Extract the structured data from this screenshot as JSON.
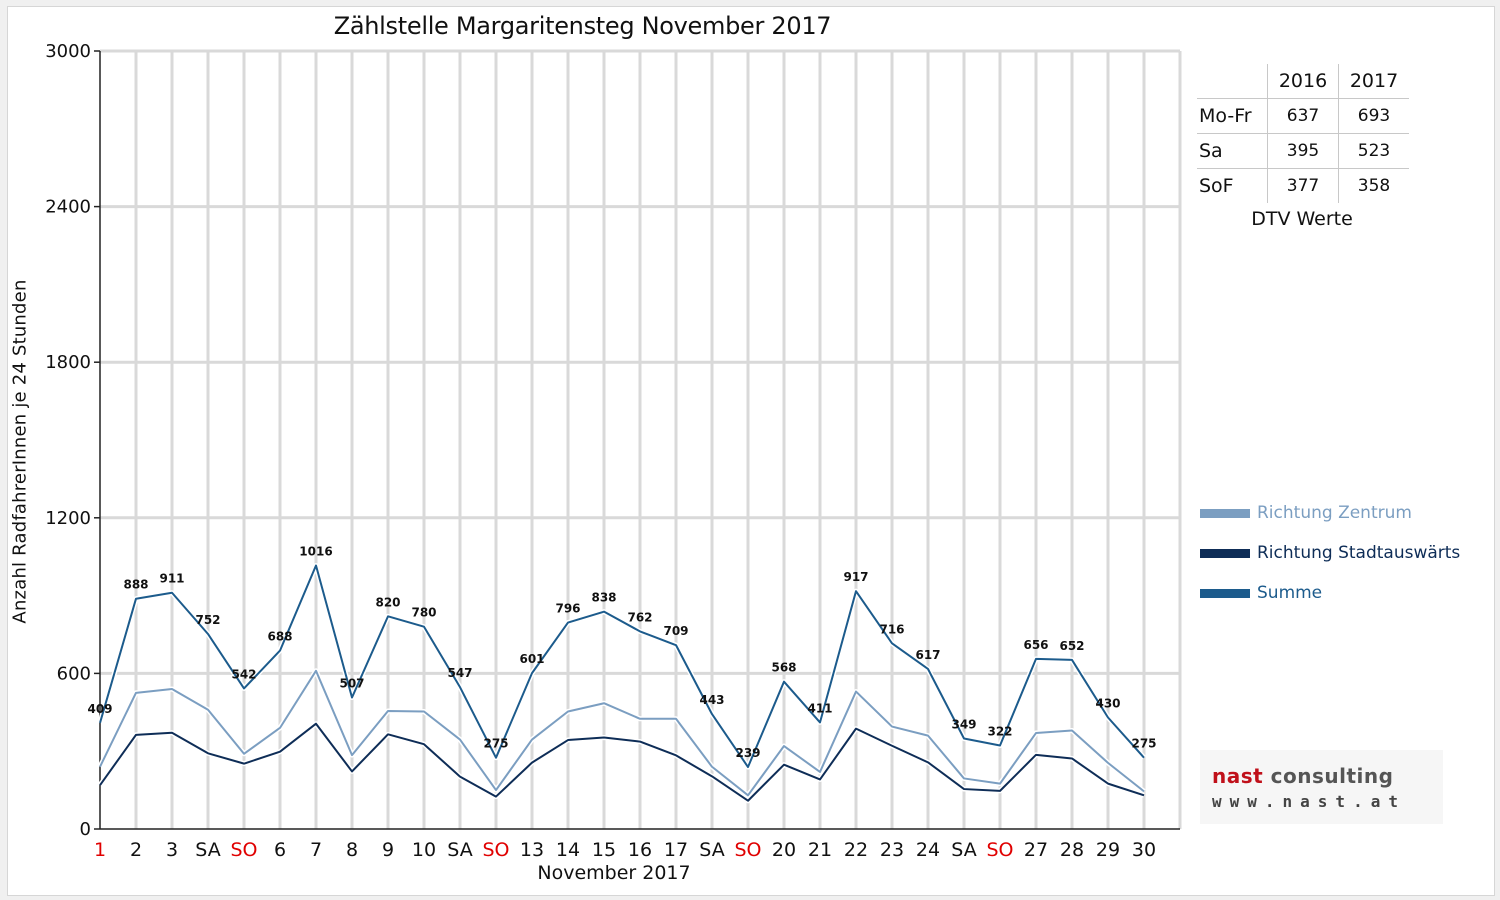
{
  "chart_data": {
    "type": "line",
    "title": "Zählstelle Margaritensteg November 2017",
    "xlabel": "November 2017",
    "ylabel": "Anzahl RadfahrerInnen je 24 Stunden",
    "ylim": [
      0,
      3000
    ],
    "yticks": [
      0,
      600,
      1200,
      1800,
      2400,
      3000
    ],
    "grid": true,
    "categories": [
      "1",
      "2",
      "3",
      "SA",
      "SO",
      "6",
      "7",
      "8",
      "9",
      "10",
      "SA",
      "SO",
      "13",
      "14",
      "15",
      "16",
      "17",
      "SA",
      "SO",
      "20",
      "21",
      "22",
      "23",
      "24",
      "SA",
      "SO",
      "27",
      "28",
      "29",
      "30"
    ],
    "category_colors": [
      "#e00000",
      "#111111",
      "#111111",
      "#111111",
      "#e00000",
      "#111111",
      "#111111",
      "#111111",
      "#111111",
      "#111111",
      "#111111",
      "#e00000",
      "#111111",
      "#111111",
      "#111111",
      "#111111",
      "#111111",
      "#111111",
      "#e00000",
      "#111111",
      "#111111",
      "#111111",
      "#111111",
      "#111111",
      "#111111",
      "#e00000",
      "#111111",
      "#111111",
      "#111111",
      "#111111"
    ],
    "series": [
      {
        "name": "Richtung Zentrum",
        "color": "#7b9ec1",
        "values": [
          240,
          525,
          540,
          460,
          290,
          390,
          610,
          285,
          455,
          453,
          345,
          150,
          345,
          453,
          485,
          425,
          425,
          240,
          130,
          320,
          220,
          530,
          395,
          360,
          195,
          175,
          370,
          380,
          255,
          145
        ]
      },
      {
        "name": "Richtung Stadtauswärts",
        "color": "#0e2d57",
        "values": [
          169,
          363,
          371,
          292,
          252,
          298,
          406,
          222,
          365,
          327,
          202,
          125,
          256,
          343,
          353,
          337,
          284,
          203,
          109,
          248,
          191,
          387,
          321,
          257,
          154,
          147,
          286,
          272,
          175,
          130
        ]
      },
      {
        "name": "Summe",
        "color": "#1c5b8c",
        "values": [
          409,
          888,
          911,
          752,
          542,
          688,
          1016,
          507,
          820,
          780,
          547,
          275,
          601,
          796,
          838,
          762,
          709,
          443,
          239,
          568,
          411,
          917,
          716,
          617,
          349,
          322,
          656,
          652,
          430,
          275
        ]
      }
    ],
    "data_labels": [
      "409",
      "888",
      "911",
      "752",
      "542",
      "688",
      "1016",
      "507",
      "820",
      "780",
      "547",
      "275",
      "601",
      "796",
      "838",
      "762",
      "709",
      "443",
      "239",
      "568",
      "411",
      "917",
      "716",
      "617",
      "349",
      "322",
      "656",
      "652",
      "430",
      "275"
    ],
    "legend": "right"
  },
  "dtv": {
    "years": [
      "2016",
      "2017"
    ],
    "rows": [
      {
        "label": "Mo-Fr",
        "v2016": "637",
        "v2017": "693"
      },
      {
        "label": "Sa",
        "v2016": "395",
        "v2017": "523"
      },
      {
        "label": "SoF",
        "v2016": "377",
        "v2017": "358"
      }
    ],
    "caption": "DTV Werte"
  },
  "logo": {
    "name_red": "nast",
    "name_grey": " consulting",
    "url": "www.nast.at"
  }
}
